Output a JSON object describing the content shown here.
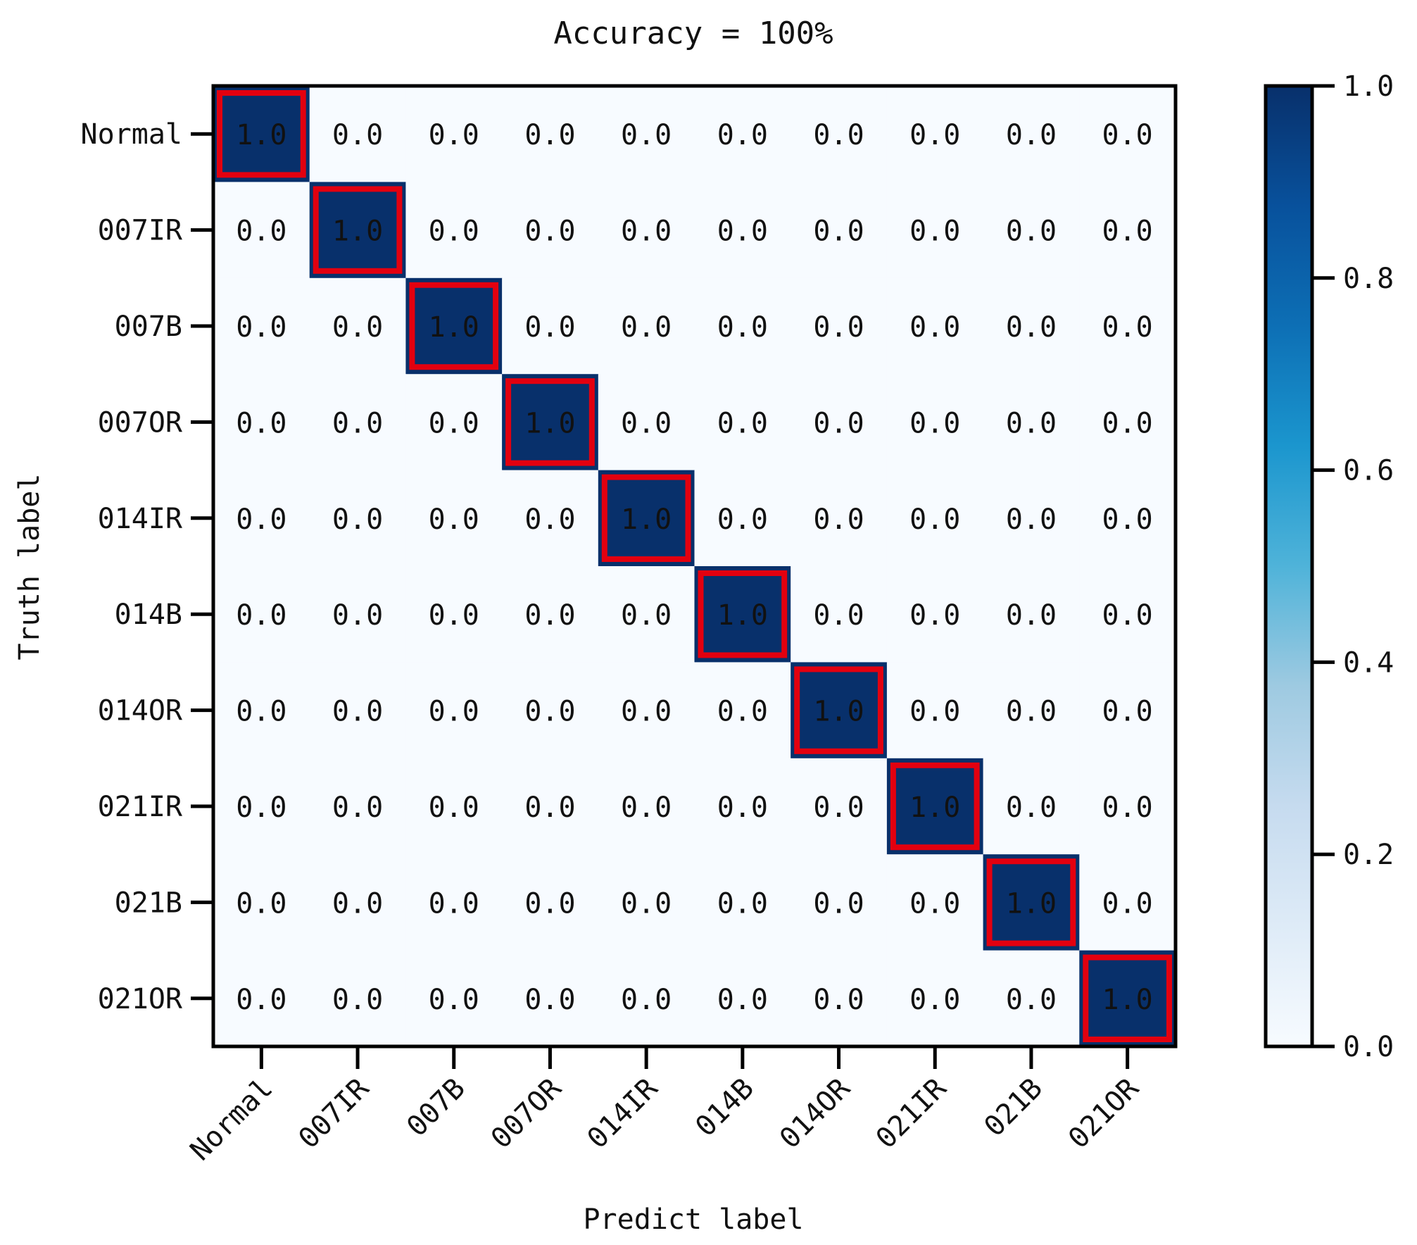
{
  "chart_data": {
    "type": "heatmap",
    "title": "Accuracy = 100%",
    "xlabel": "Predict label",
    "ylabel": "Truth label",
    "row_labels": [
      "Normal",
      "007IR",
      "007B",
      "007OR",
      "014IR",
      "014B",
      "014OR",
      "021IR",
      "021B",
      "021OR"
    ],
    "col_labels": [
      "Normal",
      "007IR",
      "007B",
      "007OR",
      "014IR",
      "014B",
      "014OR",
      "021IR",
      "021B",
      "021OR"
    ],
    "values": [
      [
        1.0,
        0.0,
        0.0,
        0.0,
        0.0,
        0.0,
        0.0,
        0.0,
        0.0,
        0.0
      ],
      [
        0.0,
        1.0,
        0.0,
        0.0,
        0.0,
        0.0,
        0.0,
        0.0,
        0.0,
        0.0
      ],
      [
        0.0,
        0.0,
        1.0,
        0.0,
        0.0,
        0.0,
        0.0,
        0.0,
        0.0,
        0.0
      ],
      [
        0.0,
        0.0,
        0.0,
        1.0,
        0.0,
        0.0,
        0.0,
        0.0,
        0.0,
        0.0
      ],
      [
        0.0,
        0.0,
        0.0,
        0.0,
        1.0,
        0.0,
        0.0,
        0.0,
        0.0,
        0.0
      ],
      [
        0.0,
        0.0,
        0.0,
        0.0,
        0.0,
        1.0,
        0.0,
        0.0,
        0.0,
        0.0
      ],
      [
        0.0,
        0.0,
        0.0,
        0.0,
        0.0,
        0.0,
        1.0,
        0.0,
        0.0,
        0.0
      ],
      [
        0.0,
        0.0,
        0.0,
        0.0,
        0.0,
        0.0,
        0.0,
        1.0,
        0.0,
        0.0
      ],
      [
        0.0,
        0.0,
        0.0,
        0.0,
        0.0,
        0.0,
        0.0,
        0.0,
        1.0,
        0.0
      ],
      [
        0.0,
        0.0,
        0.0,
        0.0,
        0.0,
        0.0,
        0.0,
        0.0,
        0.0,
        1.0
      ]
    ],
    "value_labels": [
      [
        "1.0",
        "0.0",
        "0.0",
        "0.0",
        "0.0",
        "0.0",
        "0.0",
        "0.0",
        "0.0",
        "0.0"
      ],
      [
        "0.0",
        "1.0",
        "0.0",
        "0.0",
        "0.0",
        "0.0",
        "0.0",
        "0.0",
        "0.0",
        "0.0"
      ],
      [
        "0.0",
        "0.0",
        "1.0",
        "0.0",
        "0.0",
        "0.0",
        "0.0",
        "0.0",
        "0.0",
        "0.0"
      ],
      [
        "0.0",
        "0.0",
        "0.0",
        "1.0",
        "0.0",
        "0.0",
        "0.0",
        "0.0",
        "0.0",
        "0.0"
      ],
      [
        "0.0",
        "0.0",
        "0.0",
        "0.0",
        "1.0",
        "0.0",
        "0.0",
        "0.0",
        "0.0",
        "0.0"
      ],
      [
        "0.0",
        "0.0",
        "0.0",
        "0.0",
        "0.0",
        "1.0",
        "0.0",
        "0.0",
        "0.0",
        "0.0"
      ],
      [
        "0.0",
        "0.0",
        "0.0",
        "0.0",
        "0.0",
        "0.0",
        "1.0",
        "0.0",
        "0.0",
        "0.0"
      ],
      [
        "0.0",
        "0.0",
        "0.0",
        "0.0",
        "0.0",
        "0.0",
        "0.0",
        "1.0",
        "0.0",
        "0.0"
      ],
      [
        "0.0",
        "0.0",
        "0.0",
        "0.0",
        "0.0",
        "0.0",
        "0.0",
        "0.0",
        "1.0",
        "0.0"
      ],
      [
        "0.0",
        "0.0",
        "0.0",
        "0.0",
        "0.0",
        "0.0",
        "0.0",
        "0.0",
        "0.0",
        "1.0"
      ]
    ],
    "colorbar": {
      "range": [
        0.0,
        1.0
      ],
      "ticks": [
        "0.0",
        "0.2",
        "0.4",
        "0.6",
        "0.8",
        "1.0"
      ],
      "colormap": "Blues"
    },
    "highlighted_cells": "diagonal",
    "colors": {
      "low": "#f7fbff",
      "high": "#08306b",
      "highlight": "#e3000f",
      "text_on_dark": "#ffffff",
      "text_on_light": "#111111"
    }
  }
}
